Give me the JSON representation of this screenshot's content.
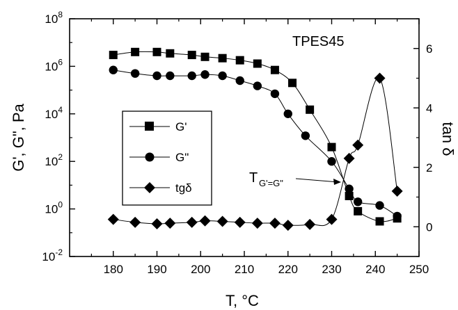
{
  "chart_data": {
    "type": "line",
    "annotation_title": "TPES45",
    "crossover_label": "T",
    "crossover_subscript": "G'=G\"",
    "xlabel": "T, °C",
    "ylabel_left": "G', G\", Pa",
    "ylabel_right": "tan δ",
    "xlim": [
      170,
      250
    ],
    "x_ticks": [
      180,
      190,
      200,
      210,
      220,
      230,
      240,
      250
    ],
    "ylim_left_log10": [
      -2,
      8
    ],
    "y_ticks_left_exponents": [
      -2,
      0,
      2,
      4,
      6,
      8
    ],
    "y_ticks_left_base": "10",
    "ylim_right": [
      -1,
      7
    ],
    "y_ticks_right": [
      0,
      2,
      4,
      6
    ],
    "legend_position": "middle-left",
    "series": [
      {
        "name": "G'",
        "marker": "square",
        "axis": "left",
        "x": [
          180,
          185,
          190,
          193,
          198,
          201,
          205,
          209,
          213,
          217,
          221,
          225,
          230,
          234,
          236,
          241,
          245
        ],
        "y": [
          3000000,
          4000000,
          4000000,
          3500000,
          3000000,
          2500000,
          2200000,
          1800000,
          1300000,
          700000,
          200000,
          15000,
          400,
          3.5,
          0.8,
          0.3,
          0.4
        ]
      },
      {
        "name": "G\"",
        "marker": "circle",
        "axis": "left",
        "x": [
          180,
          185,
          190,
          193,
          198,
          201,
          205,
          209,
          213,
          217,
          220,
          224,
          230,
          234,
          236,
          241,
          245
        ],
        "y": [
          700000,
          500000,
          400000,
          400000,
          400000,
          450000,
          400000,
          250000,
          150000,
          70000,
          10000,
          1200,
          100,
          7,
          2,
          1.4,
          0.5
        ]
      },
      {
        "name": "tgδ",
        "marker": "diamond",
        "axis": "right",
        "x": [
          180,
          185,
          190,
          193,
          198,
          201,
          205,
          209,
          213,
          217,
          220,
          225,
          230,
          234,
          236,
          241,
          245
        ],
        "y": [
          0.25,
          0.15,
          0.1,
          0.12,
          0.15,
          0.2,
          0.18,
          0.15,
          0.12,
          0.12,
          0.05,
          0.08,
          0.25,
          2.3,
          2.75,
          5.0,
          1.2
        ]
      }
    ]
  }
}
